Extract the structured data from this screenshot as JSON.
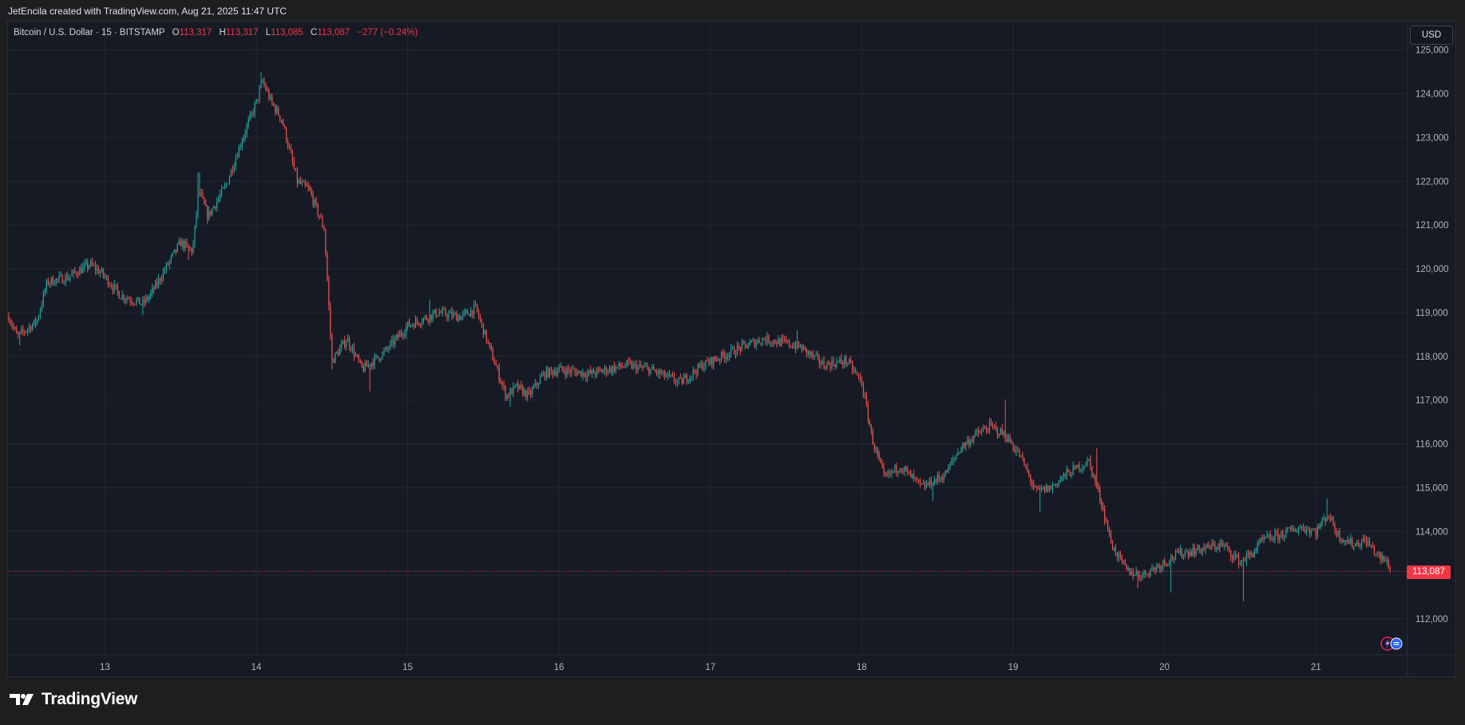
{
  "header": {
    "attribution": "JetEncila created with TradingView.com, Aug 21, 2025 11:47 UTC"
  },
  "legend": {
    "symbol": "Bitcoin / U.S. Dollar · 15 · BITSTAMP",
    "open_key": "O",
    "open": "113,317",
    "high_key": "H",
    "high": "113,317",
    "low_key": "L",
    "low": "113,085",
    "close_key": "C",
    "close": "113,087",
    "change": "−277 (−0.24%)"
  },
  "currency": "USD",
  "last_price_label": "113,087",
  "brand": {
    "name": "TradingView"
  },
  "colors": {
    "up": "#26a69a",
    "down": "#ef5350",
    "last_price": "#f23645",
    "background": "#161a25",
    "grid": "#232732"
  },
  "icons": [
    "tradingview-logo-icon",
    "events-badge-icon"
  ],
  "chart_data": {
    "type": "candlestick",
    "interval": "15",
    "x_tick_labels": [
      "13",
      "14",
      "15",
      "16",
      "17",
      "18",
      "19",
      "20",
      "21"
    ],
    "x_ticks_day": [
      13,
      14,
      15,
      16,
      17,
      18,
      19,
      20,
      21
    ],
    "y_tick_labels": [
      "125,000",
      "124,000",
      "123,000",
      "122,000",
      "121,000",
      "120,000",
      "119,000",
      "118,000",
      "117,000",
      "116,000",
      "115,000",
      "114,000",
      "113,000",
      "112,000"
    ],
    "y_ticks": [
      125000,
      124000,
      123000,
      122000,
      121000,
      120000,
      119000,
      118000,
      117000,
      116000,
      115000,
      114000,
      113000,
      112000
    ],
    "xlim_day": [
      12.36,
      21.6
    ],
    "ylim": [
      111180,
      125650
    ],
    "last_price": 113087,
    "grid": true,
    "close_path_points": [
      [
        12.36,
        118950
      ],
      [
        12.42,
        118450
      ],
      [
        12.55,
        118800
      ],
      [
        12.62,
        119700
      ],
      [
        12.75,
        119800
      ],
      [
        12.9,
        120100
      ],
      [
        12.98,
        119900
      ],
      [
        13.1,
        119400
      ],
      [
        13.25,
        119200
      ],
      [
        13.3,
        119400
      ],
      [
        13.45,
        120300
      ],
      [
        13.5,
        120600
      ],
      [
        13.58,
        120400
      ],
      [
        13.62,
        121800
      ],
      [
        13.68,
        121200
      ],
      [
        13.8,
        121900
      ],
      [
        13.9,
        122900
      ],
      [
        14.0,
        123800
      ],
      [
        14.04,
        124300
      ],
      [
        14.1,
        123800
      ],
      [
        14.17,
        123400
      ],
      [
        14.27,
        122000
      ],
      [
        14.35,
        121800
      ],
      [
        14.45,
        120900
      ],
      [
        14.5,
        117900
      ],
      [
        14.6,
        118400
      ],
      [
        14.7,
        117700
      ],
      [
        14.85,
        118100
      ],
      [
        15.0,
        118700
      ],
      [
        15.2,
        119000
      ],
      [
        15.35,
        118900
      ],
      [
        15.45,
        119100
      ],
      [
        15.55,
        118100
      ],
      [
        15.65,
        117100
      ],
      [
        15.72,
        117300
      ],
      [
        15.8,
        117100
      ],
      [
        15.9,
        117600
      ],
      [
        16.0,
        117700
      ],
      [
        16.2,
        117600
      ],
      [
        16.45,
        117800
      ],
      [
        16.6,
        117700
      ],
      [
        16.8,
        117400
      ],
      [
        16.95,
        117800
      ],
      [
        17.2,
        118200
      ],
      [
        17.35,
        118400
      ],
      [
        17.5,
        118300
      ],
      [
        17.6,
        118200
      ],
      [
        17.75,
        117800
      ],
      [
        17.9,
        117900
      ],
      [
        18.0,
        117400
      ],
      [
        18.07,
        116100
      ],
      [
        18.15,
        115200
      ],
      [
        18.25,
        115500
      ],
      [
        18.4,
        115000
      ],
      [
        18.55,
        115300
      ],
      [
        18.65,
        115900
      ],
      [
        18.75,
        116200
      ],
      [
        18.85,
        116400
      ],
      [
        18.95,
        116200
      ],
      [
        19.05,
        115700
      ],
      [
        19.15,
        114900
      ],
      [
        19.25,
        115000
      ],
      [
        19.35,
        115300
      ],
      [
        19.5,
        115600
      ],
      [
        19.58,
        114700
      ],
      [
        19.65,
        113700
      ],
      [
        19.75,
        113100
      ],
      [
        19.85,
        113000
      ],
      [
        19.95,
        113200
      ],
      [
        20.1,
        113500
      ],
      [
        20.25,
        113600
      ],
      [
        20.38,
        113700
      ],
      [
        20.5,
        113300
      ],
      [
        20.58,
        113500
      ],
      [
        20.65,
        113800
      ],
      [
        20.75,
        113900
      ],
      [
        20.9,
        114100
      ],
      [
        21.0,
        114000
      ],
      [
        21.08,
        114400
      ],
      [
        21.15,
        113900
      ],
      [
        21.25,
        113700
      ],
      [
        21.33,
        113800
      ],
      [
        21.42,
        113400
      ],
      [
        21.47,
        113300
      ],
      [
        21.5,
        113087
      ]
    ],
    "dips": [
      [
        12.44,
        118250
      ],
      [
        13.25,
        118950
      ],
      [
        13.55,
        120200
      ],
      [
        14.47,
        121300
      ],
      [
        14.5,
        117700
      ],
      [
        14.75,
        117200
      ],
      [
        15.68,
        116850
      ],
      [
        18.47,
        114700
      ],
      [
        19.18,
        114450
      ],
      [
        19.82,
        112700
      ],
      [
        20.04,
        112600
      ],
      [
        20.52,
        112400
      ]
    ],
    "spikes": [
      [
        13.62,
        122200
      ],
      [
        14.03,
        124500
      ],
      [
        15.15,
        119300
      ],
      [
        17.57,
        118600
      ],
      [
        18.95,
        117000
      ],
      [
        19.55,
        115900
      ],
      [
        21.07,
        114750
      ]
    ]
  }
}
